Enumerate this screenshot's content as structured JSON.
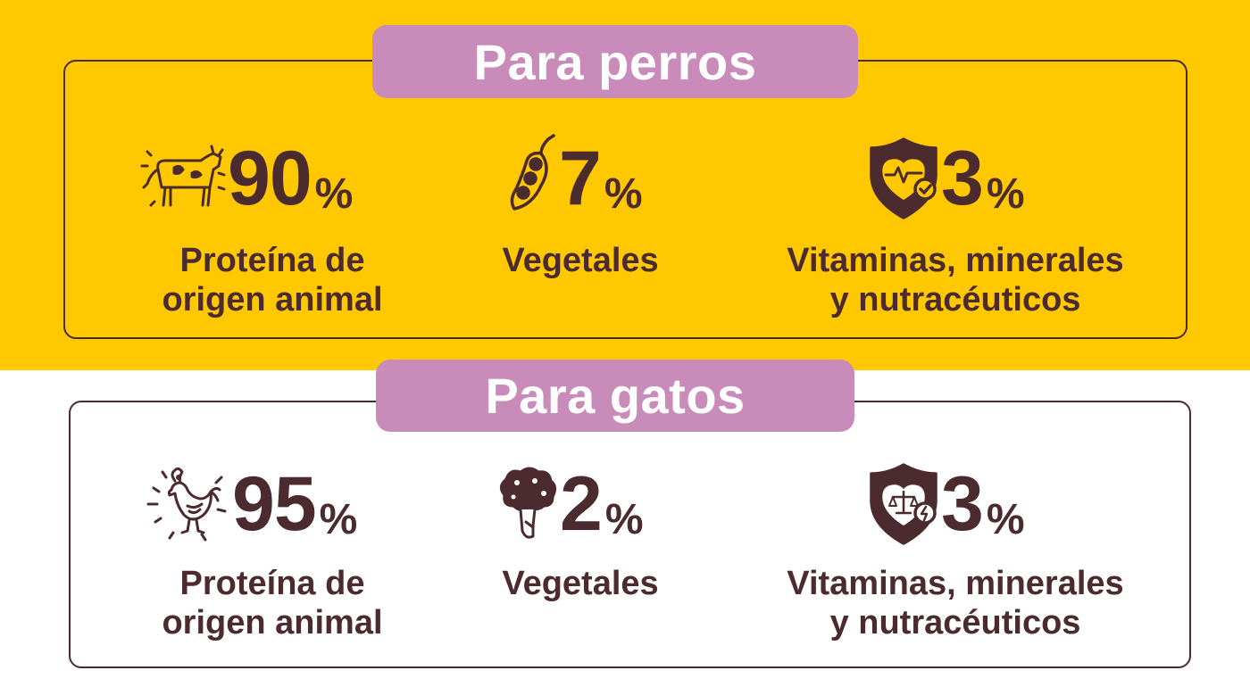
{
  "dogs": {
    "title": "Para perros",
    "items": [
      {
        "icon": "cow-icon",
        "value": "90",
        "unit": "%",
        "label_line1": "Proteína de",
        "label_line2": "origen animal"
      },
      {
        "icon": "peas-icon",
        "value": "7",
        "unit": "%",
        "label_line1": "Vegetales",
        "label_line2": ""
      },
      {
        "icon": "health-shield-icon",
        "value": "3",
        "unit": "%",
        "label_line1": "Vitaminas, minerales",
        "label_line2": "y nutracéuticos"
      }
    ]
  },
  "cats": {
    "title": "Para gatos",
    "items": [
      {
        "icon": "chicken-icon",
        "value": "95",
        "unit": "%",
        "label_line1": "Proteína de",
        "label_line2": "origen animal"
      },
      {
        "icon": "broccoli-icon",
        "value": "2",
        "unit": "%",
        "label_line1": "Vegetales",
        "label_line2": ""
      },
      {
        "icon": "balance-shield-icon",
        "value": "3",
        "unit": "%",
        "label_line1": "Vitaminas, minerales",
        "label_line2": "y nutracéuticos"
      }
    ]
  },
  "colors": {
    "yellow": "#ffc800",
    "pink": "#c98bb9",
    "brown": "#4b2b2e",
    "white": "#ffffff"
  }
}
